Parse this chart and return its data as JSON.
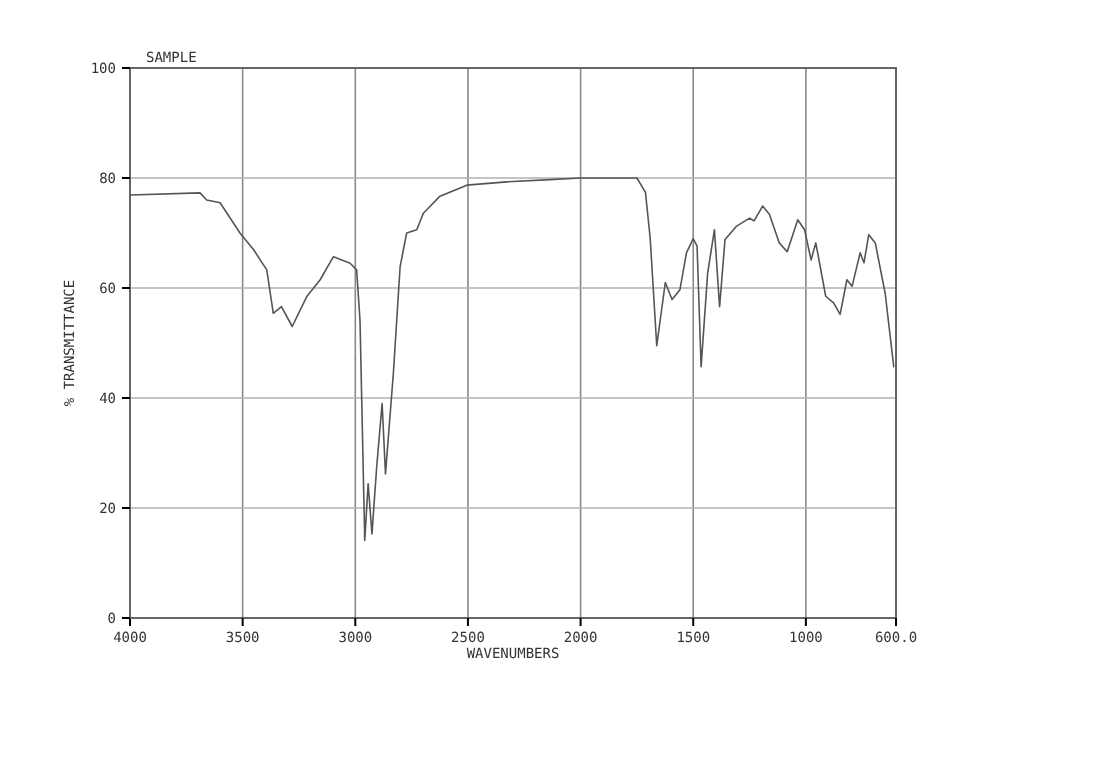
{
  "chart_data": {
    "type": "line",
    "title": "SAMPLE",
    "xlabel": "WAVENUMBERS",
    "ylabel": "% TRANSMITTANCE",
    "xlim": [
      4000,
      600
    ],
    "ylim": [
      0,
      100
    ],
    "xticks": [
      4000,
      3500,
      3000,
      2500,
      2000,
      1500,
      1000,
      {
        "value": 600,
        "label": "600.0"
      }
    ],
    "yticks": [
      0,
      20,
      40,
      60,
      80,
      100
    ],
    "grid": true,
    "series": [
      {
        "color": "#555555",
        "x": [
          4000,
          3689,
          3660,
          3600,
          3512,
          3452,
          3393,
          3364,
          3328,
          3280,
          3216,
          3156,
          3097,
          3023,
          2994,
          2979,
          2958,
          2943,
          2926,
          2905,
          2881,
          2866,
          2831,
          2801,
          2772,
          2727,
          2698,
          2624,
          2505,
          2328,
          2135,
          2000,
          1750,
          1712,
          1691,
          1662,
          1624,
          1594,
          1559,
          1530,
          1500,
          1483,
          1465,
          1436,
          1406,
          1383,
          1359,
          1309,
          1250,
          1230,
          1192,
          1162,
          1118,
          1083,
          1036,
          1006,
          977,
          956,
          912,
          877,
          848,
          818,
          795,
          759,
          742,
          721,
          692,
          648,
          610
        ],
        "values": [
          76.9,
          77.3,
          76,
          75.5,
          70,
          67,
          63.3,
          55.4,
          56.6,
          53,
          58.4,
          61.5,
          65.7,
          64.5,
          63.3,
          54,
          14.1,
          24.4,
          15.3,
          27.5,
          39,
          26.2,
          44.5,
          63.9,
          70,
          70.6,
          73.6,
          76.7,
          78.7,
          79.3,
          79.7,
          80,
          80,
          77.4,
          69,
          49.5,
          61,
          57.9,
          59.7,
          66.4,
          69,
          67.6,
          45.7,
          62.7,
          70.6,
          56.6,
          68.8,
          71.2,
          72.7,
          72.2,
          74.9,
          73.4,
          68.2,
          66.6,
          72.4,
          70.6,
          65.1,
          68.2,
          58.5,
          57.3,
          55.2,
          61.5,
          60.3,
          66.4,
          64.6,
          69.7,
          68.2,
          59,
          45.7
        ]
      }
    ]
  }
}
